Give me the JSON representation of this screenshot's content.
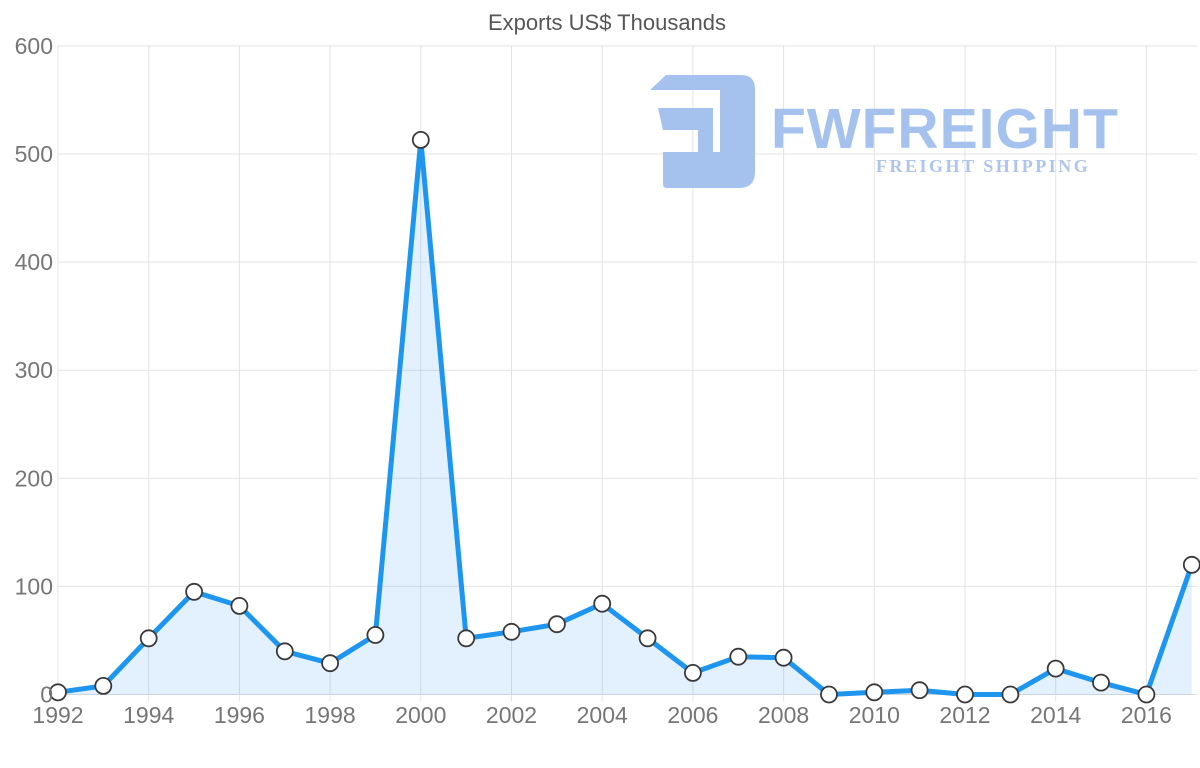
{
  "chart_data": {
    "type": "area",
    "title": "Exports US$ Thousands",
    "xlabel": "",
    "ylabel": "",
    "x": [
      1992,
      1993,
      1994,
      1995,
      1996,
      1997,
      1998,
      1999,
      2000,
      2001,
      2002,
      2003,
      2004,
      2005,
      2006,
      2007,
      2008,
      2009,
      2010,
      2011,
      2012,
      2013,
      2014,
      2015,
      2016,
      2017
    ],
    "series": [
      {
        "name": "Exports US$ Thousands",
        "values": [
          2,
          8,
          52,
          95,
          82,
          40,
          29,
          55,
          513,
          52,
          58,
          65,
          84,
          52,
          20,
          35,
          34,
          0,
          2,
          4,
          0,
          0,
          24,
          11,
          0,
          120
        ]
      }
    ],
    "xticks": [
      1992,
      1994,
      1996,
      1998,
      2000,
      2002,
      2004,
      2006,
      2008,
      2010,
      2012,
      2014,
      2016
    ],
    "yticks": [
      0,
      100,
      200,
      300,
      400,
      500,
      600
    ],
    "xlim": [
      1992,
      2017
    ],
    "ylim": [
      0,
      600
    ],
    "grid": true,
    "legend": "none",
    "colors": {
      "line": "#1e96f0",
      "area_fill": "rgba(33,150,243,0.13)",
      "marker_fill": "#ffffff",
      "marker_stroke": "#3a3a3a",
      "grid": "#e3e3e3",
      "baseline": "#d6dade",
      "tick_text": "#767676",
      "title_text": "#565656"
    }
  },
  "logo": {
    "name": "FWFREIGHT",
    "tagline": "FREIGHT SHIPPING",
    "color": "#a5c2ee"
  }
}
